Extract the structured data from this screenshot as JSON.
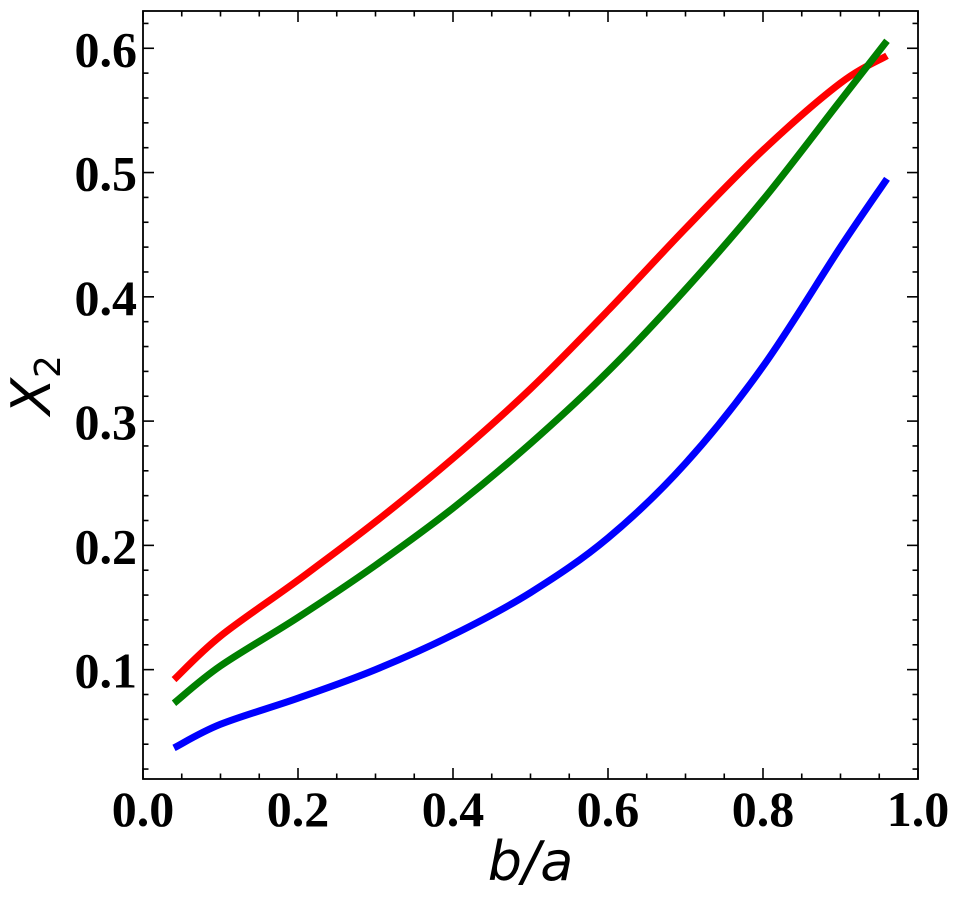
{
  "chart_data": {
    "type": "line",
    "title": "",
    "xlabel": "b/a",
    "ylabel_main": "X",
    "ylabel_sub": "2",
    "xlim": [
      0.0,
      1.0
    ],
    "ylim": [
      0.012,
      0.63
    ],
    "xticks": [
      0.0,
      0.2,
      0.4,
      0.6,
      0.8,
      1.0
    ],
    "xtick_labels": [
      "0.0",
      "0.2",
      "0.4",
      "0.6",
      "0.8",
      "1.0"
    ],
    "yticks": [
      0.1,
      0.2,
      0.3,
      0.4,
      0.5,
      0.6
    ],
    "ytick_labels": [
      "0.1",
      "0.2",
      "0.3",
      "0.4",
      "0.5",
      "0.6"
    ],
    "grid": false,
    "legend": "none",
    "series": [
      {
        "color": "#ff0000",
        "x": [
          0.04,
          0.1,
          0.2,
          0.3,
          0.4,
          0.5,
          0.6,
          0.7,
          0.8,
          0.9,
          0.96
        ],
        "y": [
          0.092,
          0.127,
          0.172,
          0.219,
          0.27,
          0.326,
          0.389,
          0.455,
          0.518,
          0.572,
          0.594
        ]
      },
      {
        "color": "#008000",
        "x": [
          0.04,
          0.1,
          0.2,
          0.3,
          0.4,
          0.5,
          0.6,
          0.7,
          0.8,
          0.9,
          0.96
        ],
        "y": [
          0.073,
          0.103,
          0.142,
          0.184,
          0.23,
          0.282,
          0.34,
          0.406,
          0.478,
          0.558,
          0.606
        ]
      },
      {
        "color": "#0000ff",
        "x": [
          0.04,
          0.1,
          0.2,
          0.3,
          0.4,
          0.5,
          0.6,
          0.7,
          0.8,
          0.9,
          0.96
        ],
        "y": [
          0.037,
          0.056,
          0.077,
          0.1,
          0.128,
          0.162,
          0.206,
          0.266,
          0.344,
          0.44,
          0.495
        ]
      }
    ]
  }
}
